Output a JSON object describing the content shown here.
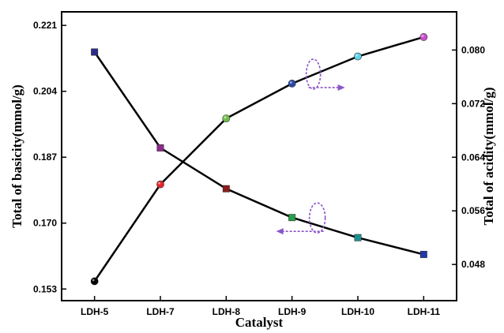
{
  "chart_data": {
    "type": "line",
    "categories": [
      "LDH-5",
      "LDH-7",
      "LDH-8",
      "LDH-9",
      "LDH-10",
      "LDH-11"
    ],
    "xlabel": "Catalyst",
    "ylabel_left": "Total of basicity(mmol/g)",
    "ylabel_right": "Total of acidity(mmol/g)",
    "left_axis": {
      "ylim": [
        0.15,
        0.2245
      ],
      "ticks": [
        0.153,
        0.17,
        0.187,
        0.204,
        0.221
      ],
      "tick_labels": [
        "0.153",
        "0.170",
        "0.187",
        "0.204",
        "0.221"
      ]
    },
    "right_axis": {
      "ylim": [
        0.0426,
        0.0857
      ],
      "ticks": [
        0.048,
        0.056,
        0.064,
        0.072,
        0.08
      ],
      "tick_labels": [
        "0.048",
        "0.056",
        "0.064",
        "0.072",
        "0.080"
      ]
    },
    "series": [
      {
        "axis": "left",
        "marker": "circle",
        "values": [
          0.155,
          0.18,
          0.197,
          0.206,
          0.213,
          0.218
        ],
        "marker_colors": [
          "#000000",
          "#e8242b",
          "#6fc04a",
          "#2a4aa8",
          "#5fd3e8",
          "#c94fc9"
        ]
      },
      {
        "axis": "right",
        "marker": "square",
        "values": [
          0.0797,
          0.0654,
          0.0593,
          0.055,
          0.052,
          0.0495
        ],
        "marker_colors": [
          "#2b2b8c",
          "#8b2a8b",
          "#8c1c1c",
          "#26a04a",
          "#1a9090",
          "#2338a8"
        ]
      }
    ],
    "grid": false,
    "legend": "none",
    "annotations": [
      {
        "type": "dashed-ellipse-arrow",
        "points_to": "right",
        "color": "#8a55c8"
      },
      {
        "type": "dashed-ellipse-arrow",
        "points_to": "left",
        "color": "#8a55c8"
      }
    ]
  }
}
